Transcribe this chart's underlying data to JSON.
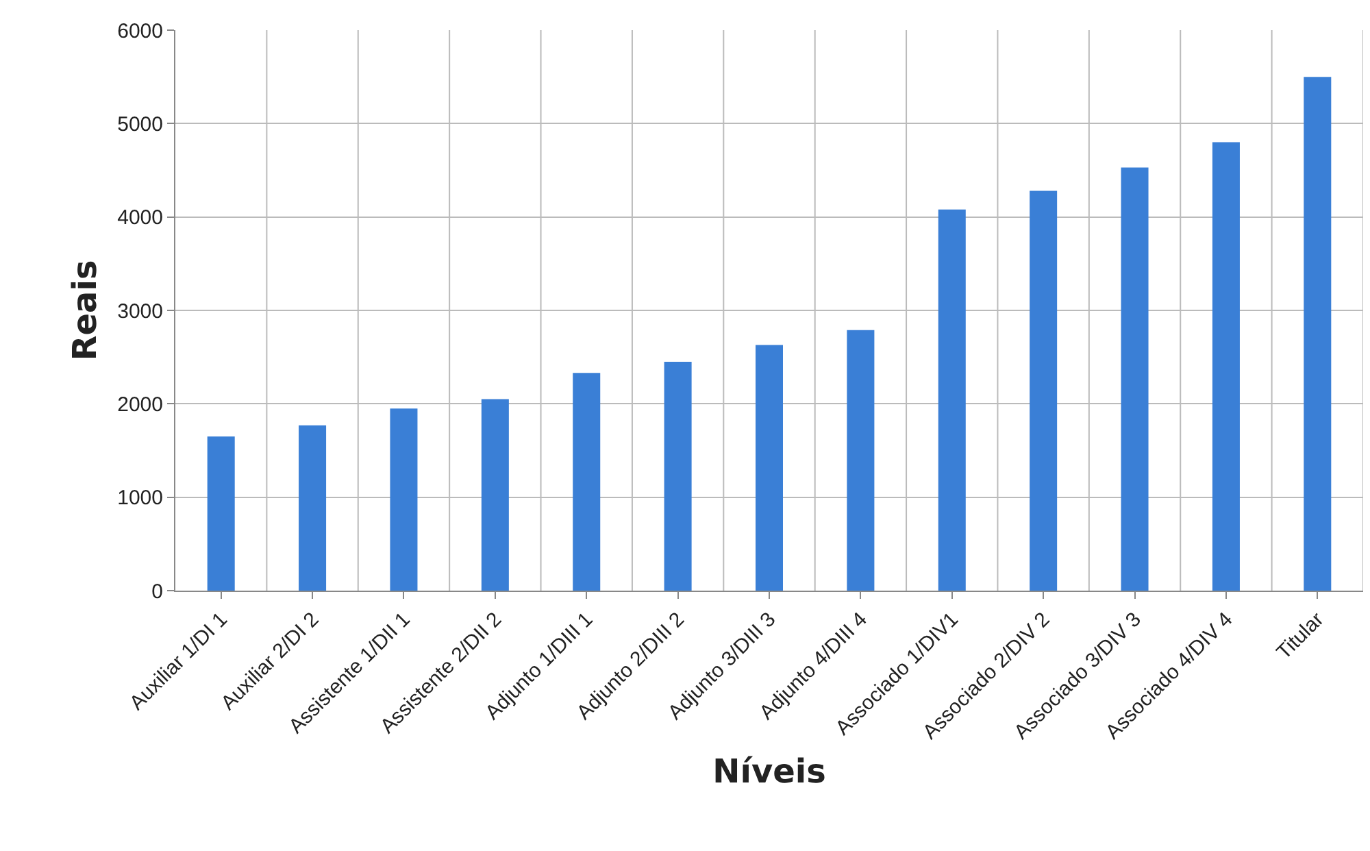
{
  "chart_data": {
    "type": "bar",
    "xlabel": "Níveis",
    "ylabel": "Reais",
    "categories": [
      "Auxiliar 1/DI 1",
      "Auxiliar 2/DI 2",
      "Assistente 1/DII 1",
      "Assistente 2/DII 2",
      "Adjunto 1/DIII 1",
      "Adjunto 2/DIII 2",
      "Adjunto 3/DIII 3",
      "Adjunto 4/DIII 4",
      "Associado 1/DIV1",
      "Associado 2/DIV 2",
      "Associado 3/DIV 3",
      "Associado 4/DIV 4",
      "Titular"
    ],
    "values": [
      1650,
      1770,
      1950,
      2050,
      2330,
      2450,
      2630,
      2790,
      4080,
      4280,
      4530,
      4800,
      5500
    ],
    "color": "#3a7fd6",
    "ylim": [
      0,
      6000
    ],
    "yticks": [
      0,
      1000,
      2000,
      3000,
      4000,
      5000,
      6000
    ],
    "grid": true
  }
}
